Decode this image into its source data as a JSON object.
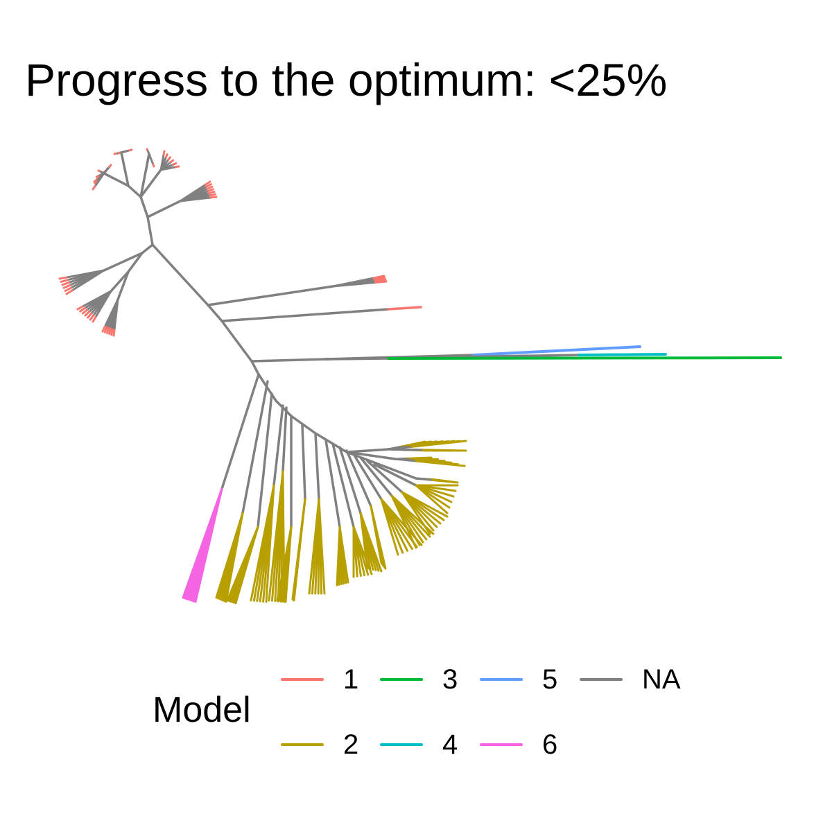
{
  "title": "Progress to the optimum: <25%",
  "legend": {
    "title": "Model",
    "items": [
      {
        "label": "1",
        "color": "#F8766D"
      },
      {
        "label": "2",
        "color": "#B79F00"
      },
      {
        "label": "3",
        "color": "#00BA38"
      },
      {
        "label": "4",
        "color": "#00BFC4"
      },
      {
        "label": "5",
        "color": "#619CFF"
      },
      {
        "label": "6",
        "color": "#F564E3"
      },
      {
        "label": "NA",
        "color": "#808080"
      }
    ]
  }
}
